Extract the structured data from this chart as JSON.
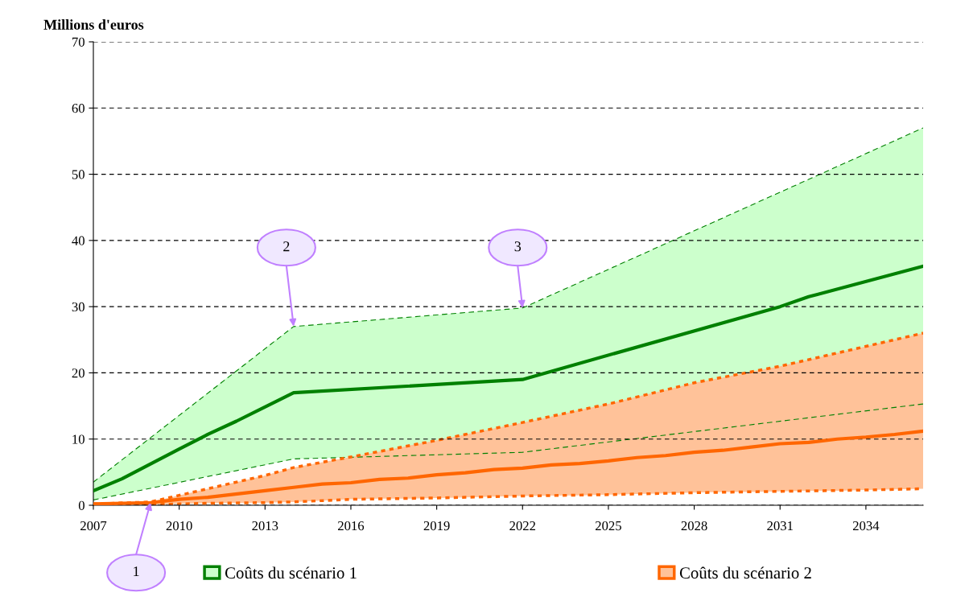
{
  "chart_data": {
    "type": "line",
    "ylabel": "Millions d'euros",
    "xlim": [
      2007,
      2036
    ],
    "xticks": [
      2007,
      2010,
      2013,
      2016,
      2019,
      2022,
      2025,
      2028,
      2031,
      2034
    ],
    "ylim": [
      0,
      70
    ],
    "yticks": [
      0,
      10,
      20,
      30,
      40,
      50,
      60,
      70
    ],
    "grid": "y",
    "legend": "bottom",
    "series": [
      {
        "name": "Coûts du scénario 1",
        "color": "#008000",
        "x": [
          2007,
          2008,
          2010,
          2011,
          2012,
          2014,
          2022,
          2031,
          2032,
          2036
        ],
        "values": [
          2.2,
          4,
          8.5,
          10.7,
          12.7,
          17,
          19,
          30,
          31.5,
          36.1
        ],
        "lower": [
          0.8,
          1.7,
          3.5,
          4.4,
          5.2,
          7,
          8,
          12.7,
          13.2,
          15.3
        ],
        "upper": [
          3.5,
          6.9,
          13.6,
          17,
          20.4,
          27,
          29.8,
          47.3,
          49.2,
          57
        ]
      },
      {
        "name": "Coûts du scénario 2",
        "color": "#ff6600",
        "x": [
          2007,
          2009,
          2010,
          2011,
          2013,
          2014,
          2015,
          2016,
          2017,
          2018,
          2019,
          2020,
          2021,
          2022,
          2023,
          2024,
          2025,
          2026,
          2027,
          2028,
          2029,
          2030,
          2031,
          2032,
          2033,
          2034,
          2035,
          2036
        ],
        "values": [
          0.2,
          0.4,
          0.9,
          1.2,
          2.2,
          2.7,
          3.2,
          3.4,
          3.9,
          4.1,
          4.6,
          4.9,
          5.4,
          5.6,
          6.1,
          6.3,
          6.7,
          7.2,
          7.5,
          8,
          8.3,
          8.8,
          9.3,
          9.5,
          10,
          10.3,
          10.7,
          11.2
        ],
        "lower": [
          0,
          0.1,
          0.2,
          0.3,
          0.4,
          0.5,
          0.7,
          0.9,
          1,
          1,
          1.1,
          1.2,
          1.3,
          1.4,
          1.45,
          1.5,
          1.6,
          1.7,
          1.8,
          1.9,
          2,
          2,
          2.1,
          2.2,
          2.2,
          2.3,
          2.4,
          2.5
        ],
        "upper": [
          0.2,
          0.5,
          1.5,
          2.5,
          4.5,
          5.7,
          6.5,
          7.3,
          8.1,
          9,
          9.8,
          10.7,
          11.6,
          12.5,
          13.4,
          14.4,
          15.3,
          16.4,
          17.4,
          18.5,
          19.3,
          20.2,
          21,
          22,
          23,
          24,
          25,
          26
        ]
      },
      {
        "color": "#008000",
        "line_style": "dashed",
        "x": [
          2007,
          2014,
          2022,
          2036
        ],
        "values": [
          0.8,
          7,
          8,
          15.3
        ]
      },
      {
        "color": "#008000",
        "line_style": "dashed",
        "x": [
          2007,
          2014,
          2022,
          2036
        ],
        "values": [
          3.5,
          27,
          29.8,
          57
        ]
      },
      {
        "color": "#ff6600",
        "line_style": "dotted",
        "x": [
          2007,
          2009,
          2010,
          2011,
          2013,
          2014,
          2016,
          2019,
          2022,
          2025,
          2028,
          2031,
          2034,
          2036
        ],
        "values": [
          0,
          0.1,
          0.2,
          0.3,
          0.4,
          0.5,
          0.9,
          1.1,
          1.4,
          1.6,
          1.9,
          2.1,
          2.3,
          2.5
        ]
      },
      {
        "color": "#ff6600",
        "line_style": "dotted",
        "x": [
          2007,
          2009,
          2010,
          2011,
          2013,
          2014,
          2016,
          2019,
          2022,
          2025,
          2028,
          2031,
          2034,
          2036
        ],
        "values": [
          0.2,
          0.5,
          1.5,
          2.5,
          4.5,
          5.7,
          7.3,
          9.8,
          12.5,
          15.3,
          18.5,
          21,
          24,
          26
        ]
      }
    ],
    "annotations": [
      {
        "text": "1",
        "x": 2009,
        "y": 0.4
      },
      {
        "text": "2",
        "x": 2014,
        "y": 27
      },
      {
        "text": "3",
        "x": 2022,
        "y": 29.8
      }
    ]
  }
}
